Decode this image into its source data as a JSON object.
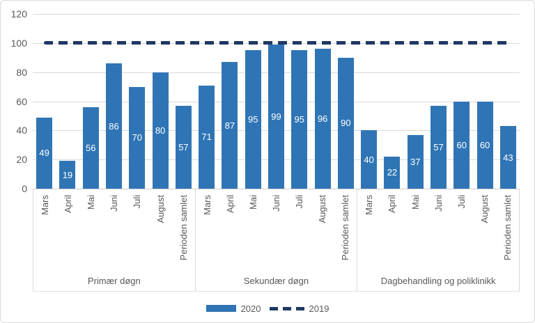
{
  "chart_data": {
    "type": "bar",
    "title": "",
    "xlabel": "",
    "ylabel": "",
    "ylim": [
      0,
      120
    ],
    "y_ticks": [
      0,
      20,
      40,
      60,
      80,
      100,
      120
    ],
    "grid": true,
    "legend_position": "bottom-center",
    "categories": [
      "Mars",
      "April",
      "Mai",
      "Juni",
      "Juli",
      "August",
      "Perioden samlet"
    ],
    "groups": [
      {
        "label": "Primær døgn",
        "values": [
          49,
          19,
          56,
          86,
          70,
          80,
          57
        ]
      },
      {
        "label": "Sekundær døgn",
        "values": [
          71,
          87,
          95,
          99,
          95,
          96,
          90
        ]
      },
      {
        "label": "Dagbehandling og poliklinikk",
        "values": [
          40,
          22,
          37,
          57,
          60,
          60,
          43
        ]
      }
    ],
    "series_name": "2020",
    "reference_line": {
      "label": "2019",
      "value": 100,
      "style": "dashed"
    }
  },
  "legend": {
    "bar_label": "2020",
    "line_label": "2019"
  },
  "colors": {
    "bar": "#2F75B5",
    "dash": "#203864",
    "grid": "#D9D9D9",
    "text": "#595959",
    "value_label": "#FFFFFF",
    "border": "#D9D9D9"
  }
}
